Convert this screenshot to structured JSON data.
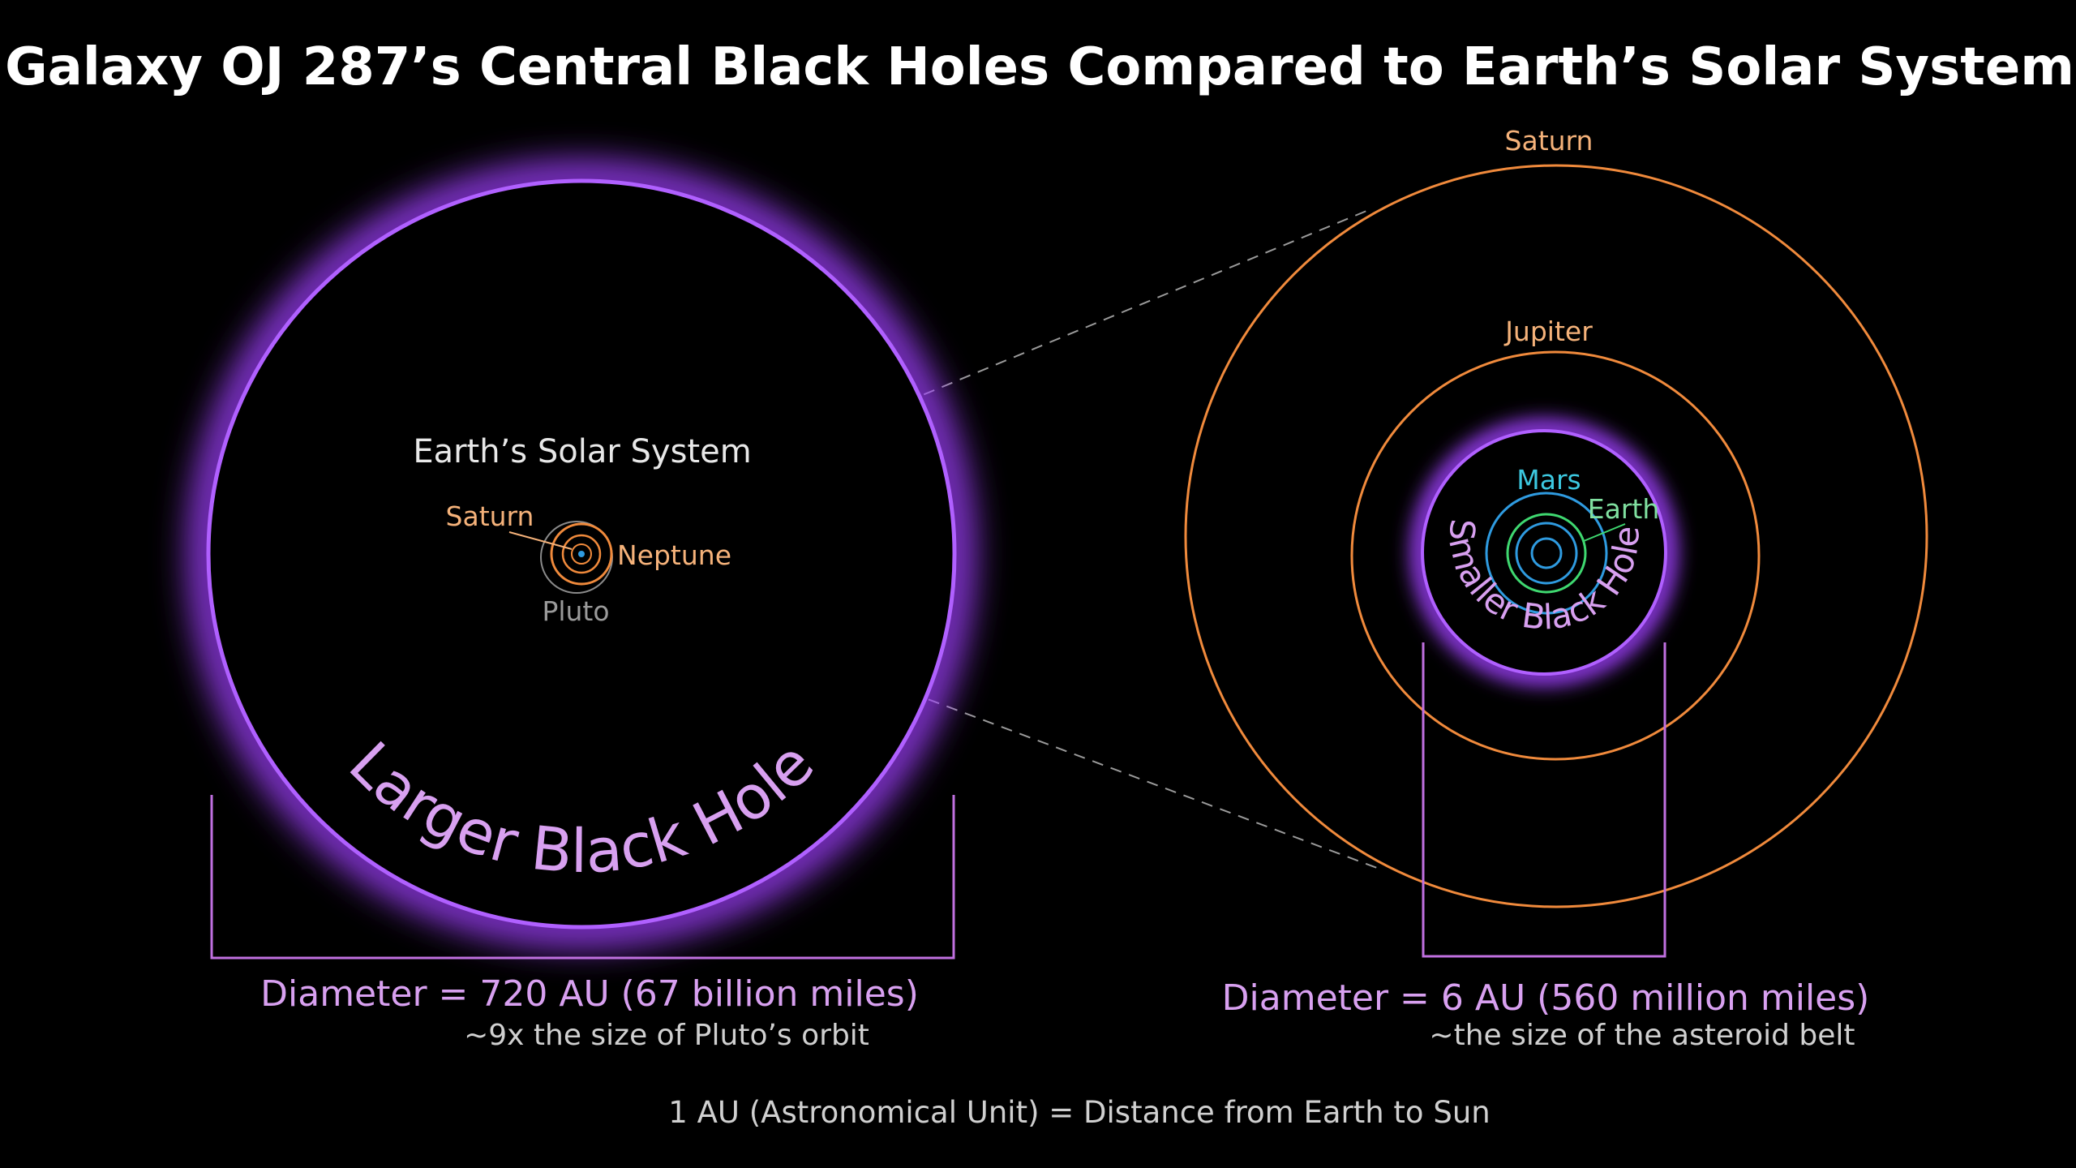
{
  "title": "Galaxy OJ 287’s Central Black Holes Compared to Earth’s Solar System",
  "left": {
    "solar_system_label": "Earth’s Solar System",
    "saturn_label": "Saturn",
    "neptune_label": "Neptune",
    "pluto_label": "Pluto",
    "black_hole_label": "Larger Black Hole",
    "diameter": "Diameter = 720 AU (67 billion miles)",
    "comparison": "~9x the size of Pluto’s orbit"
  },
  "right": {
    "saturn_label": "Saturn",
    "jupiter_label": "Jupiter",
    "mars_label": "Mars",
    "earth_label": "Earth",
    "black_hole_label": "Smaller Black Hole",
    "diameter": "Diameter = 6 AU (560 million miles)",
    "comparison": "~the size of the asteroid belt"
  },
  "footer": "1 AU (Astronomical Unit) = Distance from Earth to Sun",
  "colors": {
    "background": "#000000",
    "black_hole_glow": "#a040ff",
    "label_lavender": "#d8a0f0",
    "outer_orbit": "#f08a3c",
    "outer_label": "#f5b27a",
    "mars_orbit": "#2f9be0",
    "mars_label": "#3cc8e0",
    "earth_orbit": "#3fd870",
    "earth_label": "#80e0a0",
    "pluto_orbit": "#8a8a8a"
  }
}
